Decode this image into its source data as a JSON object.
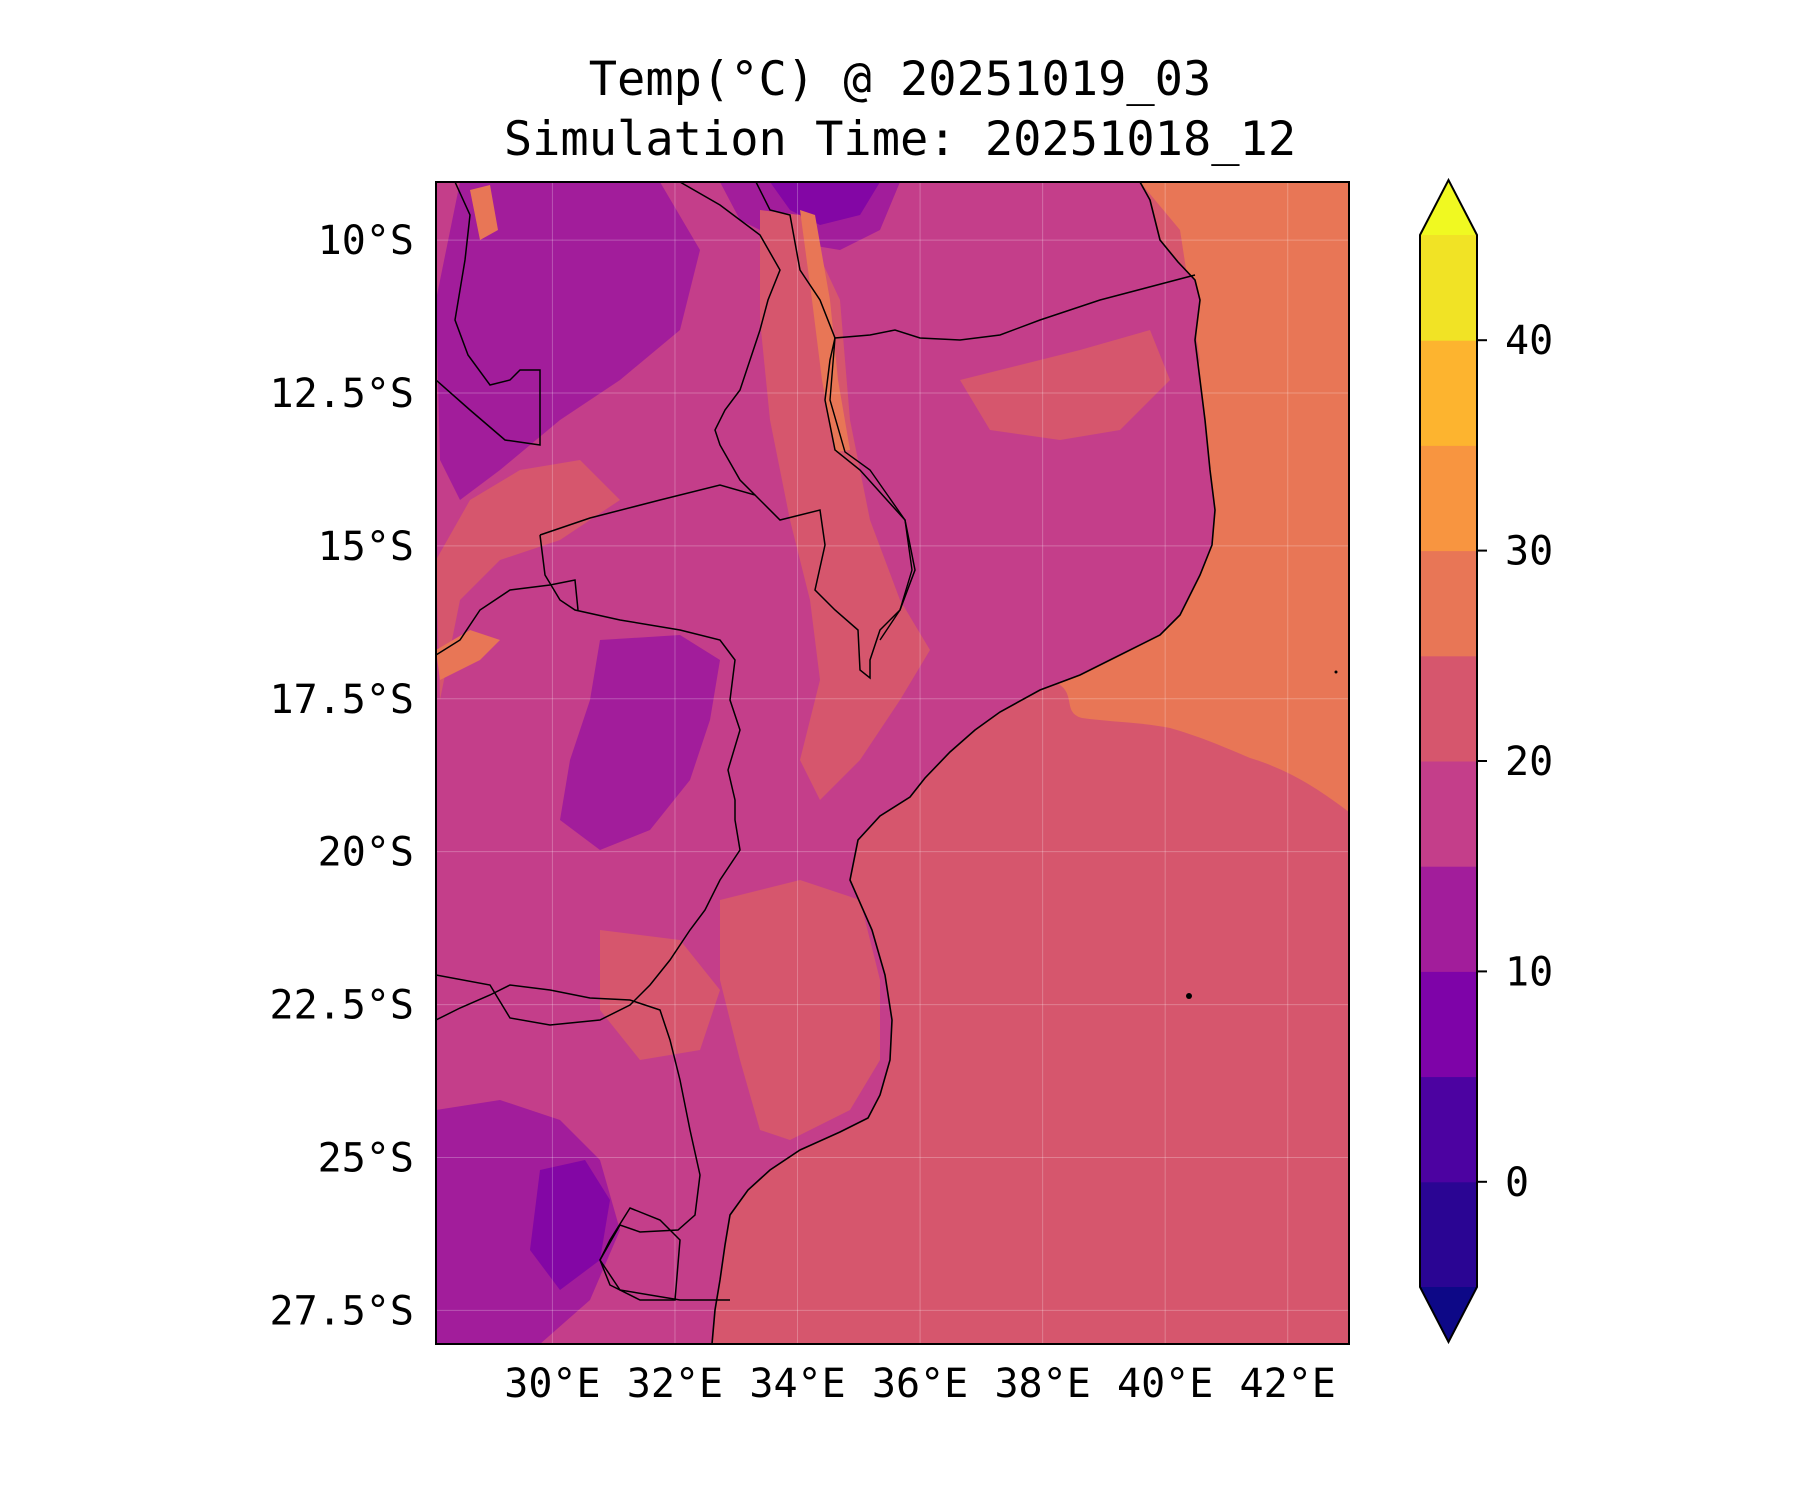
{
  "title": {
    "line1": "Temp(°C) @ 20251019_03",
    "line2": "Simulation Time: 20251018_12"
  },
  "map": {
    "lon_range": [
      28,
      43
    ],
    "lat_range": [
      -28,
      -9
    ],
    "lon_ticks": [
      "30°E",
      "32°E",
      "34°E",
      "36°E",
      "38°E",
      "40°E",
      "42°E"
    ],
    "lat_ticks": [
      "10°S",
      "12.5°S",
      "15°S",
      "17.5°S",
      "20°S",
      "22.5°S",
      "25°S",
      "27.5°S"
    ],
    "grid": true,
    "colormap": "plasma",
    "field_colors": {
      "ocean_south": "#d6566d",
      "ocean_north": "#e87656",
      "land_base": "#c43e8a",
      "land_cool": "#a21d9b",
      "land_cold": "#8306a5",
      "land_warm": "#d6566d",
      "land_hot": "#e87656"
    }
  },
  "colorbar": {
    "levels": [
      -5,
      0,
      5,
      10,
      15,
      20,
      25,
      30,
      35,
      40,
      45
    ],
    "tick_labels": [
      "0",
      "10",
      "20",
      "30",
      "40"
    ],
    "tick_values": [
      0,
      10,
      20,
      30,
      40
    ],
    "colors": [
      "#2a0593",
      "#4c02a1",
      "#7e03a8",
      "#a21d9b",
      "#c43e8a",
      "#d6566d",
      "#e87656",
      "#f89540",
      "#fdb42f",
      "#f1e325"
    ],
    "under_color": "#0d0887",
    "over_color": "#f0f921",
    "extend": "both"
  }
}
